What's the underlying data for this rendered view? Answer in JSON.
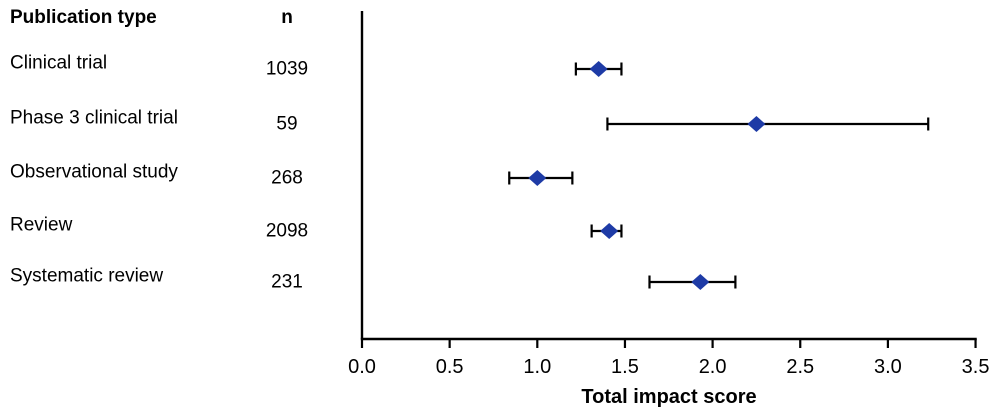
{
  "figure": {
    "background": "#ffffff",
    "axis_color": "#000000",
    "marker_color": "#1e3ba6"
  },
  "table": {
    "type_header": "Publication type",
    "n_header": "n"
  },
  "chart_data": {
    "type": "scatter",
    "variant": "forest-plot",
    "title": "",
    "xlabel": "Total impact score",
    "ylabel": "",
    "xlim": [
      0.0,
      3.5
    ],
    "xticks": [
      "0.0",
      "0.5",
      "1.0",
      "1.5",
      "2.0",
      "2.5",
      "3.0",
      "3.5"
    ],
    "grid": false,
    "legend": "none",
    "marker": "diamond",
    "marker_color": "#1e3ba6",
    "error_bar_color": "#000000",
    "categories": [
      "Clinical trial",
      "Phase 3 clinical trial",
      "Observational study",
      "Review",
      "Systematic review"
    ],
    "n": [
      1039,
      59,
      268,
      2098,
      231
    ],
    "estimates": [
      1.35,
      2.25,
      1.0,
      1.41,
      1.93
    ],
    "ci_low": [
      1.22,
      1.4,
      0.84,
      1.31,
      1.64
    ],
    "ci_high": [
      1.48,
      3.23,
      1.2,
      1.48,
      2.13
    ]
  }
}
